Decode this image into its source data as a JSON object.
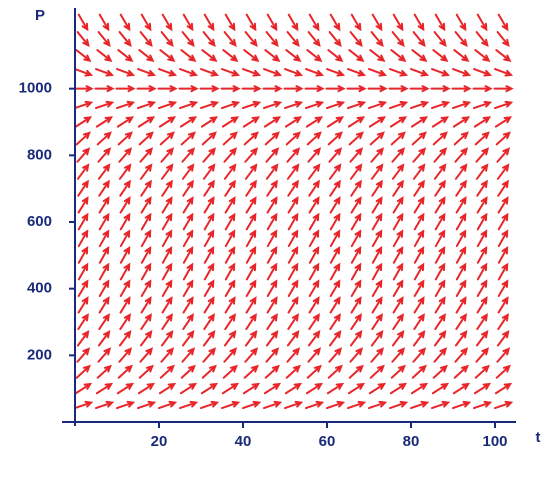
{
  "chart_data": {
    "type": "direction_field",
    "x_label": "t",
    "y_label": "P",
    "xlim": [
      0,
      105
    ],
    "ylim": [
      0,
      1230
    ],
    "xticks": [
      20,
      40,
      60,
      80,
      100
    ],
    "yticks": [
      200,
      400,
      600,
      800,
      1000
    ],
    "color": "#e8262a",
    "axis_color": "#1a2a7a",
    "field": {
      "t": [
        0,
        5,
        10,
        15,
        20,
        25,
        30,
        35,
        40,
        45,
        50,
        55,
        60,
        65,
        70,
        75,
        80,
        85,
        90,
        95,
        100
      ],
      "P": [
        50,
        100,
        150,
        200,
        250,
        300,
        350,
        400,
        450,
        500,
        550,
        600,
        650,
        700,
        750,
        800,
        850,
        900,
        950,
        1000,
        1050,
        1100,
        1150,
        1200
      ],
      "slopes": [
        4.3,
        8.1,
        11.5,
        14.4,
        16.9,
        18.9,
        20.5,
        21.6,
        22.3,
        22.5,
        22.3,
        21.6,
        20.5,
        18.9,
        16.9,
        14.4,
        11.5,
        8.1,
        4.3,
        0,
        -4.7,
        -9.9,
        -15.5,
        -21.6
      ]
    }
  }
}
